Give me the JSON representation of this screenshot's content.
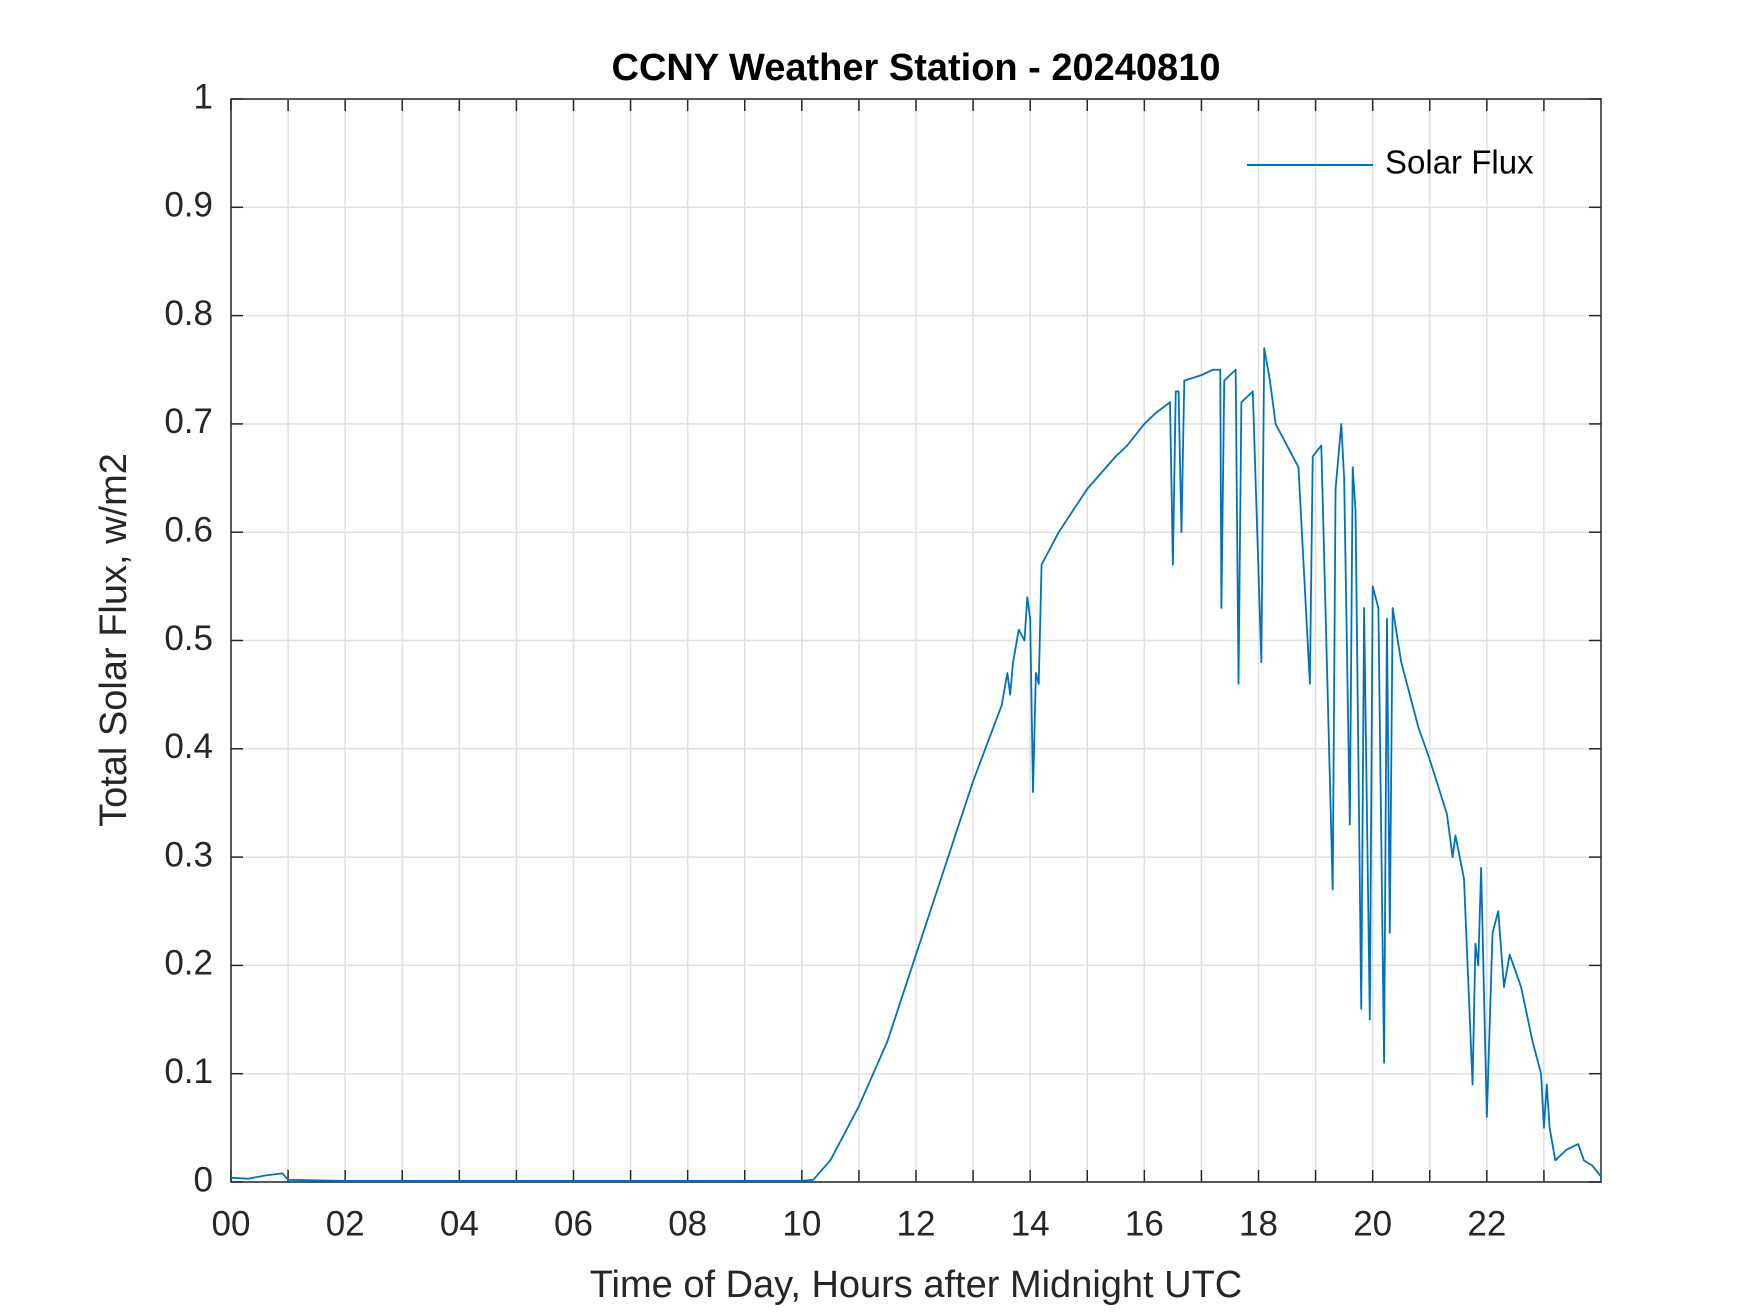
{
  "chart_data": {
    "type": "line",
    "title": "CCNY Weather Station - 20240810",
    "x_label": "Time of Day, Hours after Midnight UTC",
    "y_label": "Total Solar Flux, w/m2",
    "xlim": [
      0,
      24
    ],
    "ylim": [
      0,
      1
    ],
    "xticks": [
      {
        "value": 0,
        "label": "00"
      },
      {
        "value": 2,
        "label": "02"
      },
      {
        "value": 4,
        "label": "04"
      },
      {
        "value": 6,
        "label": "06"
      },
      {
        "value": 8,
        "label": "08"
      },
      {
        "value": 10,
        "label": "10"
      },
      12,
      14,
      16,
      18,
      20,
      22
    ],
    "xminorticks": [
      1,
      3,
      5,
      7,
      9,
      11,
      13,
      15,
      17,
      19,
      21,
      23
    ],
    "yticks": [
      0,
      0.1,
      0.2,
      0.3,
      0.4,
      0.5,
      0.6,
      0.7,
      0.8,
      0.9,
      1
    ],
    "grid": true,
    "legend": "upper right",
    "series": [
      {
        "name": "Solar Flux",
        "color": "#0072bd",
        "x": [
          0,
          0.3,
          0.6,
          0.9,
          1.0,
          2,
          4,
          6,
          8,
          10,
          10.2,
          10.5,
          11,
          11.5,
          12,
          12.5,
          13,
          13.5,
          13.6,
          13.65,
          13.7,
          13.8,
          13.9,
          13.95,
          14.0,
          14.05,
          14.1,
          14.15,
          14.2,
          14.3,
          14.4,
          14.5,
          15,
          15.5,
          15.7,
          16,
          16.2,
          16.45,
          16.5,
          16.55,
          16.6,
          16.65,
          16.7,
          17,
          17.2,
          17.33,
          17.35,
          17.4,
          17.6,
          17.65,
          17.7,
          17.9,
          18.05,
          18.1,
          18.2,
          18.3,
          18.5,
          18.7,
          18.9,
          18.95,
          19.1,
          19.3,
          19.35,
          19.45,
          19.5,
          19.6,
          19.65,
          19.7,
          19.8,
          19.85,
          19.95,
          20.0,
          20.1,
          20.2,
          20.25,
          20.3,
          20.35,
          20.5,
          20.8,
          21,
          21.3,
          21.4,
          21.45,
          21.6,
          21.75,
          21.8,
          21.85,
          21.9,
          22.0,
          22.1,
          22.2,
          22.3,
          22.4,
          22.6,
          22.8,
          22.95,
          23.0,
          23.05,
          23.1,
          23.2,
          23.4,
          23.6,
          23.7,
          23.85,
          24
        ],
        "values": [
          0.004,
          0.003,
          0.006,
          0.008,
          0.002,
          0.001,
          0.001,
          0.001,
          0.001,
          0.001,
          0.002,
          0.02,
          0.07,
          0.13,
          0.21,
          0.29,
          0.37,
          0.44,
          0.47,
          0.45,
          0.48,
          0.51,
          0.5,
          0.54,
          0.52,
          0.36,
          0.47,
          0.46,
          0.57,
          0.58,
          0.59,
          0.6,
          0.64,
          0.67,
          0.68,
          0.7,
          0.71,
          0.72,
          0.57,
          0.73,
          0.73,
          0.6,
          0.74,
          0.745,
          0.75,
          0.75,
          0.53,
          0.74,
          0.75,
          0.46,
          0.72,
          0.73,
          0.48,
          0.77,
          0.74,
          0.7,
          0.68,
          0.66,
          0.46,
          0.67,
          0.68,
          0.27,
          0.64,
          0.7,
          0.65,
          0.33,
          0.66,
          0.62,
          0.16,
          0.53,
          0.15,
          0.55,
          0.53,
          0.11,
          0.52,
          0.23,
          0.53,
          0.48,
          0.42,
          0.39,
          0.34,
          0.3,
          0.32,
          0.28,
          0.09,
          0.22,
          0.2,
          0.29,
          0.06,
          0.23,
          0.25,
          0.18,
          0.21,
          0.18,
          0.13,
          0.1,
          0.05,
          0.09,
          0.05,
          0.02,
          0.03,
          0.035,
          0.02,
          0.015,
          0.005
        ]
      }
    ]
  }
}
